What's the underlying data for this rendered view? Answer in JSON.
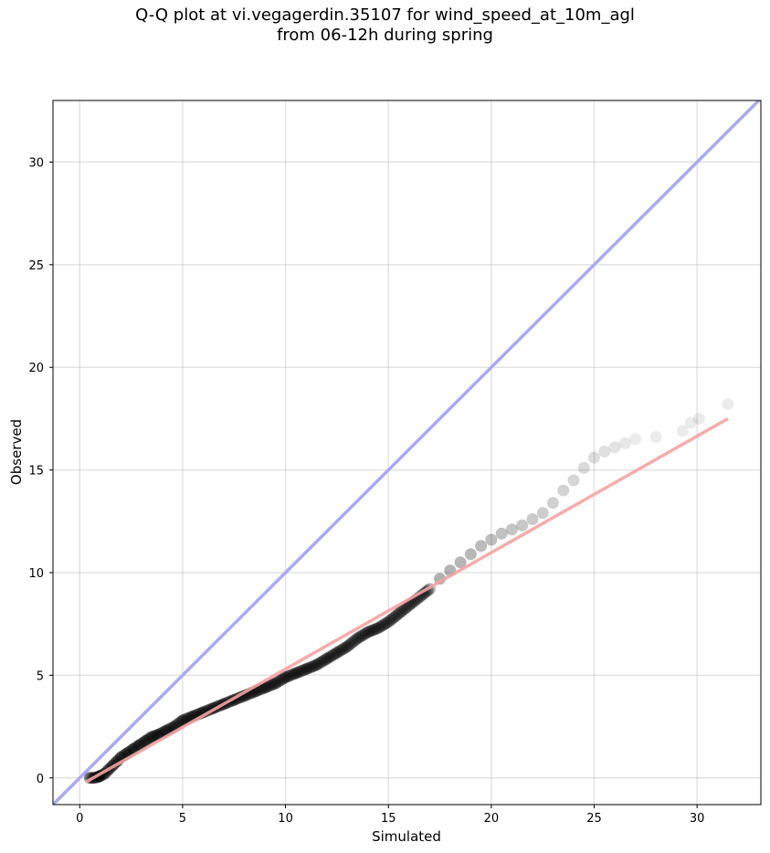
{
  "title_line1": "Q-Q plot at vi.vegagerdin.35107 for wind_speed_at_10m_agl",
  "title_line2": "from 06-12h during spring",
  "chart_data": {
    "type": "scatter",
    "xlabel": "Simulated",
    "ylabel": "Observed",
    "xlim": [
      -1.3,
      33.1
    ],
    "ylim": [
      -1.3,
      33.0
    ],
    "x_ticks": [
      0,
      5,
      10,
      15,
      20,
      25,
      30
    ],
    "y_ticks": [
      0,
      5,
      10,
      15,
      20,
      25,
      30
    ],
    "grid": true,
    "identity_line": {
      "x": [
        -1.3,
        33.1
      ],
      "y": [
        -1.3,
        33.1
      ],
      "color": "#aaaaf0"
    },
    "fit_line": {
      "x": [
        0.3,
        31.5
      ],
      "y": [
        -0.2,
        17.5
      ],
      "color": "#f5a3a3"
    },
    "point_color": "#000000",
    "series": [
      {
        "points": [
          [
            0.5,
            0.0
          ],
          [
            0.7,
            0.0
          ],
          [
            0.9,
            0.05
          ],
          [
            1.0,
            0.1
          ],
          [
            1.2,
            0.2
          ],
          [
            1.4,
            0.4
          ],
          [
            1.6,
            0.6
          ],
          [
            1.8,
            0.8
          ],
          [
            2.0,
            1.0
          ],
          [
            2.3,
            1.2
          ],
          [
            2.6,
            1.4
          ],
          [
            2.9,
            1.6
          ],
          [
            3.2,
            1.8
          ],
          [
            3.5,
            2.0
          ],
          [
            3.8,
            2.1
          ],
          [
            4.2,
            2.3
          ],
          [
            4.6,
            2.5
          ],
          [
            5.0,
            2.8
          ],
          [
            5.5,
            3.0
          ],
          [
            6.0,
            3.2
          ],
          [
            6.5,
            3.4
          ],
          [
            7.0,
            3.6
          ],
          [
            7.5,
            3.8
          ],
          [
            8.0,
            4.0
          ],
          [
            8.5,
            4.2
          ],
          [
            9.0,
            4.4
          ],
          [
            9.5,
            4.6
          ],
          [
            10.0,
            4.9
          ],
          [
            10.5,
            5.1
          ],
          [
            11.0,
            5.3
          ],
          [
            11.5,
            5.5
          ],
          [
            12.0,
            5.8
          ],
          [
            12.5,
            6.1
          ],
          [
            13.0,
            6.4
          ],
          [
            13.5,
            6.8
          ],
          [
            14.0,
            7.1
          ],
          [
            14.5,
            7.3
          ],
          [
            15.0,
            7.6
          ],
          [
            15.5,
            8.0
          ],
          [
            16.0,
            8.4
          ],
          [
            16.5,
            8.8
          ],
          [
            17.0,
            9.2
          ],
          [
            17.5,
            9.7
          ],
          [
            18.0,
            10.1
          ],
          [
            18.5,
            10.5
          ],
          [
            19.0,
            10.9
          ],
          [
            19.5,
            11.3
          ],
          [
            20.0,
            11.6
          ],
          [
            20.5,
            11.9
          ],
          [
            21.0,
            12.1
          ],
          [
            21.5,
            12.3
          ],
          [
            22.0,
            12.6
          ],
          [
            22.5,
            12.9
          ],
          [
            23.0,
            13.4
          ],
          [
            23.5,
            14.0
          ],
          [
            24.0,
            14.5
          ],
          [
            24.5,
            15.1
          ],
          [
            25.0,
            15.6
          ],
          [
            25.5,
            15.9
          ],
          [
            26.0,
            16.1
          ],
          [
            26.5,
            16.3
          ],
          [
            27.0,
            16.5
          ],
          [
            28.0,
            16.6
          ],
          [
            29.3,
            16.9
          ],
          [
            29.7,
            17.3
          ],
          [
            30.1,
            17.5
          ],
          [
            31.5,
            18.2
          ]
        ]
      }
    ]
  }
}
